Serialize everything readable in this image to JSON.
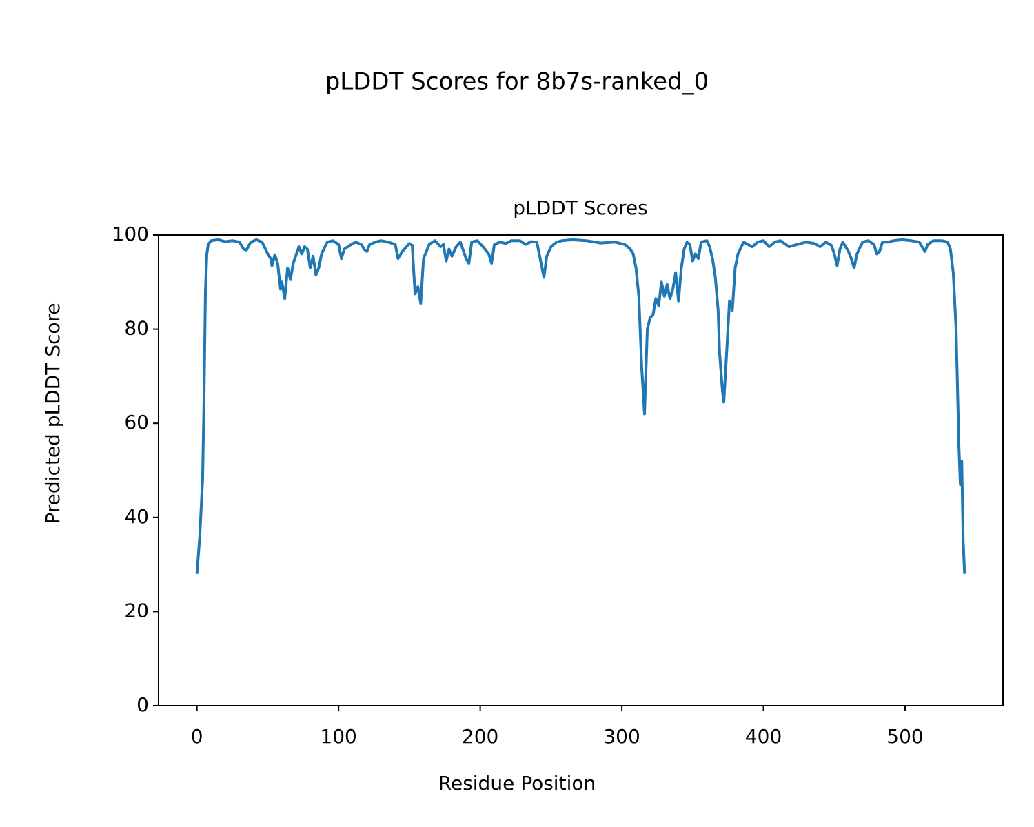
{
  "chart_data": {
    "type": "line",
    "title": "pLDDT Scores for 8b7s-ranked_0",
    "subtitle": "pLDDT Scores",
    "xlabel": "Residue Position",
    "ylabel": "Predicted pLDDT Score",
    "x": [
      0,
      2,
      4,
      5,
      6,
      7,
      8,
      10,
      15,
      20,
      25,
      30,
      33,
      35,
      38,
      42,
      46,
      50,
      52,
      53,
      55,
      57,
      59,
      60,
      62,
      64,
      66,
      68,
      72,
      74,
      76,
      78,
      80,
      82,
      84,
      86,
      88,
      92,
      96,
      100,
      102,
      104,
      108,
      112,
      116,
      118,
      120,
      122,
      126,
      130,
      135,
      140,
      142,
      145,
      150,
      152,
      154,
      156,
      158,
      160,
      164,
      168,
      172,
      174,
      176,
      178,
      180,
      183,
      186,
      190,
      192,
      194,
      198,
      202,
      206,
      208,
      210,
      214,
      218,
      222,
      228,
      232,
      236,
      240,
      243,
      245,
      247,
      250,
      254,
      258,
      265,
      275,
      285,
      295,
      302,
      306,
      308,
      310,
      312,
      314,
      316,
      318,
      320,
      322,
      324,
      326,
      328,
      330,
      332,
      334,
      336,
      338,
      340,
      342,
      344,
      346,
      348,
      350,
      352,
      354,
      356,
      360,
      362,
      364,
      366,
      368,
      369,
      371,
      372,
      374,
      376,
      378,
      380,
      382,
      386,
      392,
      396,
      400,
      404,
      408,
      412,
      418,
      424,
      430,
      436,
      440,
      444,
      448,
      450,
      452,
      454,
      456,
      460,
      462,
      464,
      466,
      470,
      474,
      478,
      480,
      482,
      484,
      488,
      492,
      498,
      504,
      510,
      514,
      516,
      520,
      526,
      530,
      532,
      534,
      536,
      538,
      539,
      540,
      541,
      542
    ],
    "series": [
      {
        "name": "pLDDT",
        "color": "#1f77b4",
        "values": [
          28,
          36,
          48,
          65,
          88,
          96,
          98,
          98.8,
          99,
          98.6,
          98.8,
          98.5,
          97,
          96.8,
          98.5,
          99,
          98.5,
          96,
          95,
          93.5,
          95.8,
          94,
          88.5,
          90,
          86.5,
          93,
          90.5,
          94,
          97.5,
          96,
          97.5,
          97,
          93,
          95.5,
          91.5,
          93,
          96,
          98.5,
          98.8,
          98,
          95,
          97,
          97.8,
          98.5,
          98,
          97,
          96.5,
          98,
          98.5,
          98.8,
          98.5,
          98,
          95,
          96.5,
          98.2,
          97.8,
          87.5,
          89,
          85.5,
          95,
          98,
          98.8,
          97.5,
          98,
          94.5,
          97,
          95.5,
          97.5,
          98.5,
          95,
          94,
          98.5,
          98.8,
          97.5,
          96,
          94,
          98,
          98.5,
          98.2,
          98.8,
          98.8,
          98,
          98.6,
          98.5,
          94,
          91,
          95.5,
          97.5,
          98.5,
          98.8,
          99,
          98.8,
          98.3,
          98.5,
          98,
          97,
          96,
          93,
          87,
          72,
          62,
          80,
          82.5,
          83,
          86.5,
          85,
          90,
          87,
          89.5,
          86.5,
          88.5,
          92,
          86,
          93,
          97,
          98.5,
          98,
          94.5,
          96,
          95,
          98.5,
          98.8,
          97.5,
          95,
          91,
          84,
          75,
          67,
          64.5,
          75,
          86,
          84,
          93,
          96,
          98.5,
          97.5,
          98.5,
          98.8,
          97.5,
          98.5,
          98.8,
          97.5,
          98,
          98.5,
          98.2,
          97.5,
          98.5,
          97.8,
          96,
          93.5,
          97,
          98.5,
          96.5,
          95,
          93,
          96,
          98.5,
          98.8,
          98,
          96,
          96.5,
          98.5,
          98.5,
          98.8,
          99,
          98.8,
          98.5,
          96.5,
          98,
          98.8,
          98.8,
          98.5,
          97,
          92,
          80,
          55,
          47,
          52,
          35,
          28
        ]
      }
    ],
    "xlim": [
      -27.1,
      569.1
    ],
    "ylim": [
      0,
      100
    ],
    "xticks": [
      0,
      100,
      200,
      300,
      400,
      500
    ],
    "yticks": [
      0,
      20,
      40,
      60,
      80,
      100
    ]
  }
}
